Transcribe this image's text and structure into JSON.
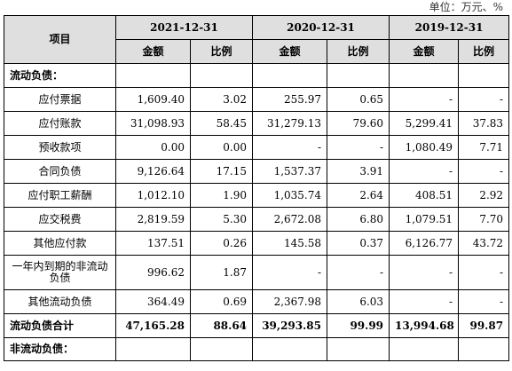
{
  "unit": "单位：万元、%",
  "header": {
    "item": "项目",
    "periods": [
      "2021-12-31",
      "2020-12-31",
      "2019-12-31"
    ],
    "amount": "金额",
    "ratio": "比例"
  },
  "rows": [
    {
      "label": "流动负债：",
      "cells": [
        "",
        "",
        "",
        "",
        "",
        ""
      ]
    },
    {
      "label": "应付票据",
      "cells": [
        "1,609.40",
        "3.02",
        "255.97",
        "0.65",
        "-",
        "-"
      ]
    },
    {
      "label": "应付账款",
      "cells": [
        "31,098.93",
        "58.45",
        "31,279.13",
        "79.60",
        "5,299.41",
        "37.83"
      ]
    },
    {
      "label": "预收款项",
      "cells": [
        "0.00",
        "0.00",
        "-",
        "-",
        "1,080.49",
        "7.71"
      ]
    },
    {
      "label": "合同负债",
      "cells": [
        "9,126.64",
        "17.15",
        "1,537.37",
        "3.91",
        "-",
        "-"
      ]
    },
    {
      "label": "应付职工薪酬",
      "cells": [
        "1,012.10",
        "1.90",
        "1,035.74",
        "2.64",
        "408.51",
        "2.92"
      ]
    },
    {
      "label": "应交税费",
      "cells": [
        "2,819.59",
        "5.30",
        "2,672.08",
        "6.80",
        "1,079.51",
        "7.70"
      ]
    },
    {
      "label": "其他应付款",
      "cells": [
        "137.51",
        "0.26",
        "145.58",
        "0.37",
        "6,126.77",
        "43.72"
      ]
    },
    {
      "label": "一年内到期的非流动负债",
      "cells": [
        "996.62",
        "1.87",
        "-",
        "-",
        "-",
        "-"
      ]
    },
    {
      "label": "其他流动负债",
      "cells": [
        "364.49",
        "0.69",
        "2,367.98",
        "6.03",
        "-",
        "-"
      ]
    },
    {
      "label": "流动负债合计",
      "cells": [
        "47,165.28",
        "88.64",
        "39,293.85",
        "99.99",
        "13,994.68",
        "99.87"
      ]
    },
    {
      "label": "非流动负债：",
      "cells": [
        "",
        "",
        "",
        "",
        "",
        ""
      ]
    }
  ]
}
